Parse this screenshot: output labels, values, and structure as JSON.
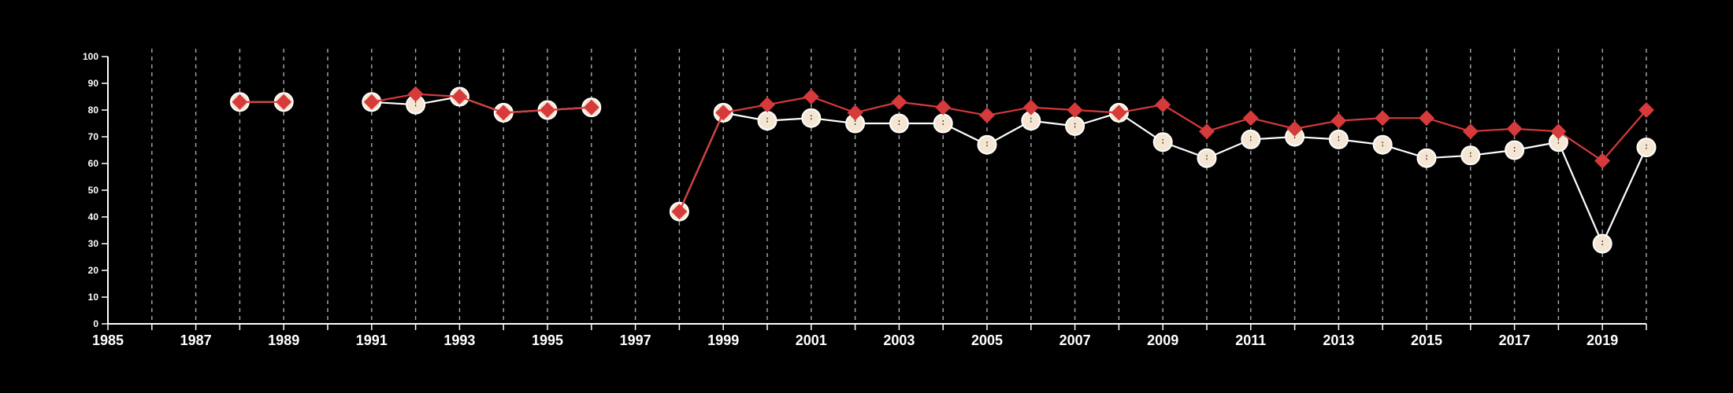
{
  "chart_data": {
    "type": "line",
    "title": "",
    "xlabel": "",
    "ylabel": "",
    "xlim": [
      1985,
      2020
    ],
    "ylim": [
      0,
      100
    ],
    "yticks": [
      0,
      10,
      20,
      30,
      40,
      50,
      60,
      70,
      80,
      90,
      100
    ],
    "xticks": [
      1985,
      1987,
      1989,
      1991,
      1993,
      1995,
      1997,
      1999,
      2001,
      2003,
      2005,
      2007,
      2009,
      2011,
      2013,
      2015,
      2017,
      2019
    ],
    "grid": "vertical dashed lines at each year",
    "legend": "none",
    "series": [
      {
        "marker": "circle",
        "color": "#f5e6d3",
        "line_color": "#ffffff",
        "points": [
          [
            1988,
            83
          ],
          [
            1989,
            83
          ],
          null,
          [
            1991,
            83
          ],
          [
            1992,
            82
          ],
          [
            1993,
            85
          ],
          [
            1994,
            79
          ],
          [
            1995,
            80
          ],
          [
            1996,
            81
          ],
          null,
          [
            1998,
            42
          ],
          [
            1999,
            79
          ],
          [
            2000,
            76
          ],
          [
            2001,
            77
          ],
          [
            2002,
            75
          ],
          [
            2003,
            75
          ],
          [
            2004,
            75
          ],
          [
            2005,
            67
          ],
          [
            2006,
            76
          ],
          [
            2007,
            74
          ],
          [
            2008,
            79
          ],
          [
            2009,
            68
          ],
          [
            2010,
            62
          ],
          [
            2011,
            69
          ],
          [
            2012,
            70
          ],
          [
            2013,
            69
          ],
          [
            2014,
            67
          ],
          [
            2015,
            62
          ],
          [
            2016,
            63
          ],
          [
            2017,
            65
          ],
          [
            2018,
            68
          ],
          [
            2019,
            30
          ],
          [
            2020,
            66
          ]
        ]
      },
      {
        "marker": "diamond",
        "color": "#d63a3a",
        "line_color": "#d63a3a",
        "points": [
          [
            1988,
            83
          ],
          [
            1989,
            83
          ],
          null,
          [
            1991,
            83
          ],
          [
            1992,
            86
          ],
          [
            1993,
            85
          ],
          [
            1994,
            79
          ],
          [
            1995,
            80
          ],
          [
            1996,
            81
          ],
          null,
          [
            1998,
            42
          ],
          [
            1999,
            79
          ],
          [
            2000,
            82
          ],
          [
            2001,
            85
          ],
          [
            2002,
            79
          ],
          [
            2003,
            83
          ],
          [
            2004,
            81
          ],
          [
            2005,
            78
          ],
          [
            2006,
            81
          ],
          [
            2007,
            80
          ],
          [
            2008,
            79
          ],
          [
            2009,
            82
          ],
          [
            2010,
            72
          ],
          [
            2011,
            77
          ],
          [
            2012,
            73
          ],
          [
            2013,
            76
          ],
          [
            2014,
            77
          ],
          [
            2015,
            77
          ],
          [
            2016,
            72
          ],
          [
            2017,
            73
          ],
          [
            2018,
            72
          ],
          [
            2019,
            61
          ],
          [
            2020,
            80
          ]
        ]
      }
    ]
  }
}
